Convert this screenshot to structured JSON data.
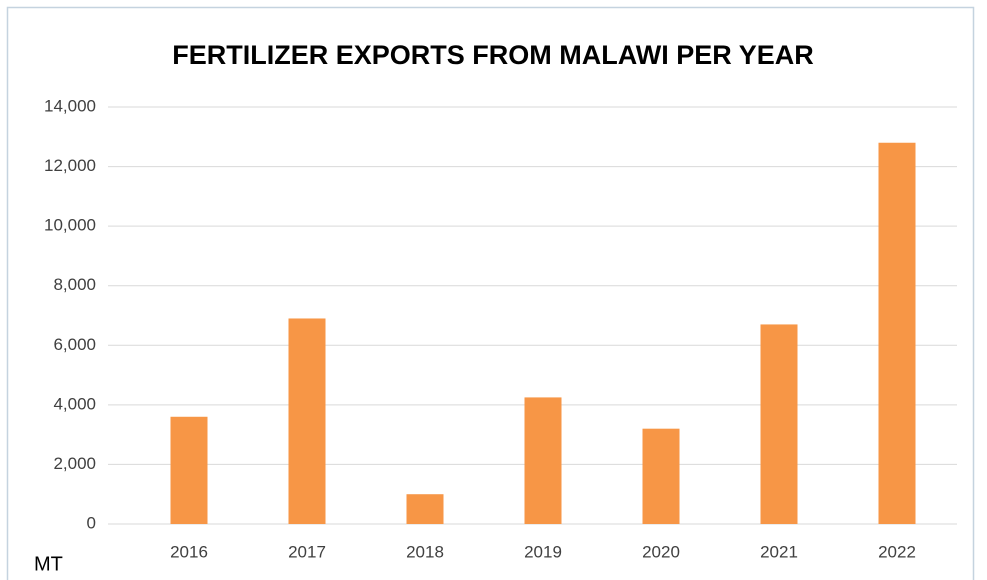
{
  "chart_data": {
    "type": "bar",
    "title": "FERTILIZER EXPORTS FROM MALAWI PER YEAR",
    "y_label": "MT",
    "categories": [
      "2016",
      "2017",
      "2018",
      "2019",
      "2020",
      "2021",
      "2022"
    ],
    "values": [
      3600,
      6900,
      1000,
      4250,
      3200,
      6700,
      12800
    ],
    "color": "#f79646",
    "ylim": [
      0,
      14000
    ],
    "yticks": [
      0,
      {
        "value": 2000,
        "label": "2,000"
      },
      {
        "value": 4000,
        "label": "4,000"
      },
      {
        "value": 6000,
        "label": "6,000"
      },
      {
        "value": 8000,
        "label": "8,000"
      },
      {
        "value": 10000,
        "label": "10,000"
      },
      {
        "value": 12000,
        "label": "12,000"
      },
      {
        "value": 14000,
        "label": "14,000"
      }
    ],
    "grid": true
  }
}
